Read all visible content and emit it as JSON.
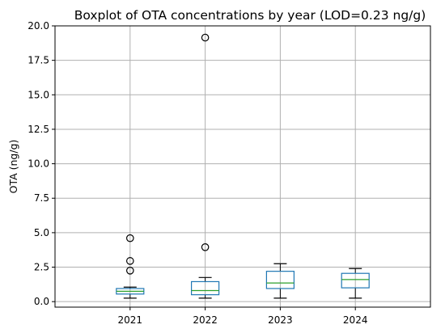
{
  "chart_data": {
    "type": "boxplot",
    "title": "Boxplot of OTA concentrations by year (LOD=0.23 ng/g)",
    "xlabel": "",
    "ylabel": "OTA (ng/g)",
    "ylim": [
      -0.4,
      20.0
    ],
    "yticks": [
      0.0,
      2.5,
      5.0,
      7.5,
      10.0,
      12.5,
      15.0,
      17.5,
      20.0
    ],
    "ytick_labels": [
      "0.0",
      "2.5",
      "5.0",
      "7.5",
      "10.0",
      "12.5",
      "15.0",
      "17.5",
      "20.0"
    ],
    "categories": [
      "2021",
      "2022",
      "2023",
      "2024"
    ],
    "grid": true,
    "colors": {
      "box": "#1f77b4",
      "median": "#2ca02c",
      "whisker": "#000000",
      "grid": "#b0b0b0"
    },
    "boxes": [
      {
        "category": "2021",
        "whisker_low": 0.25,
        "q1": 0.55,
        "median": 0.75,
        "q3": 0.95,
        "whisker_high": 1.05,
        "outliers": [
          2.25,
          2.95,
          4.6
        ]
      },
      {
        "category": "2022",
        "whisker_low": 0.25,
        "q1": 0.5,
        "median": 0.8,
        "q3": 1.45,
        "whisker_high": 1.75,
        "outliers": [
          3.95,
          19.15
        ]
      },
      {
        "category": "2023",
        "whisker_low": 0.25,
        "q1": 0.95,
        "median": 1.35,
        "q3": 2.2,
        "whisker_high": 2.75,
        "outliers": []
      },
      {
        "category": "2024",
        "whisker_low": 0.25,
        "q1": 1.0,
        "median": 1.6,
        "q3": 2.05,
        "whisker_high": 2.4,
        "outliers": []
      }
    ]
  }
}
